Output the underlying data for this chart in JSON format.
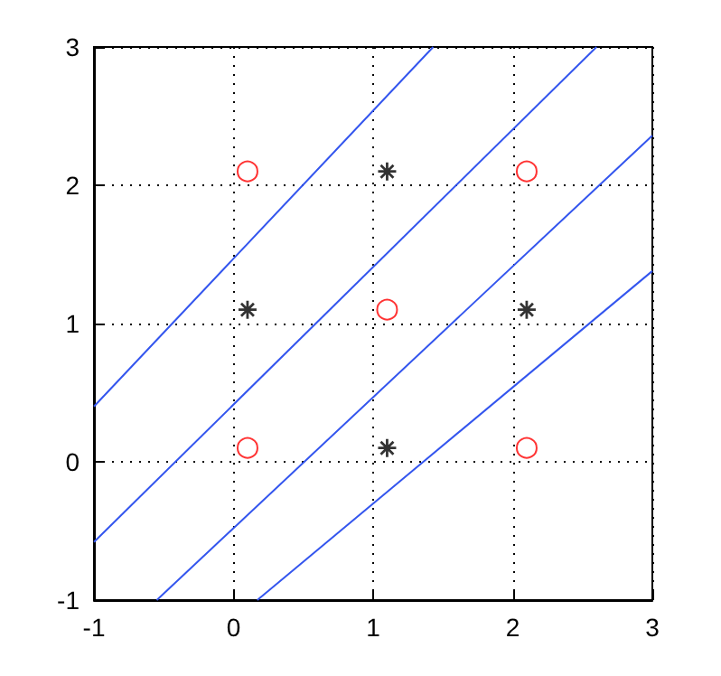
{
  "chart_data": {
    "type": "scatter",
    "xlim": [
      -1,
      3
    ],
    "ylim": [
      -1,
      3
    ],
    "xticks": [
      -1,
      0,
      1,
      2,
      3
    ],
    "yticks": [
      -1,
      0,
      1,
      2,
      3
    ],
    "grid": true,
    "series": [
      {
        "type": "scatter",
        "marker": "circle",
        "color": "#ff0000",
        "x": [
          0.1,
          0.1,
          1.1,
          2.1,
          2.1
        ],
        "values": [
          0.1,
          2.1,
          1.1,
          2.1,
          0.1
        ]
      },
      {
        "type": "scatter",
        "marker": "cross",
        "color": "#000000",
        "x": [
          0.1,
          1.1,
          1.1,
          2.1
        ],
        "values": [
          1.1,
          2.1,
          0.1,
          1.1
        ]
      },
      {
        "type": "line",
        "marker": "none",
        "color": "#3355ee",
        "x": [
          -1,
          1.43
        ],
        "values": [
          0.4,
          3
        ]
      },
      {
        "type": "line",
        "marker": "none",
        "color": "#3355ee",
        "x": [
          -1,
          2.6
        ],
        "values": [
          -0.58,
          3
        ]
      },
      {
        "type": "line",
        "marker": "none",
        "color": "#3355ee",
        "x": [
          -0.55,
          3
        ],
        "values": [
          -1,
          2.36
        ]
      },
      {
        "type": "line",
        "marker": "none",
        "color": "#3355ee",
        "x": [
          0.17,
          3
        ],
        "values": [
          -1,
          1.38
        ]
      }
    ]
  }
}
